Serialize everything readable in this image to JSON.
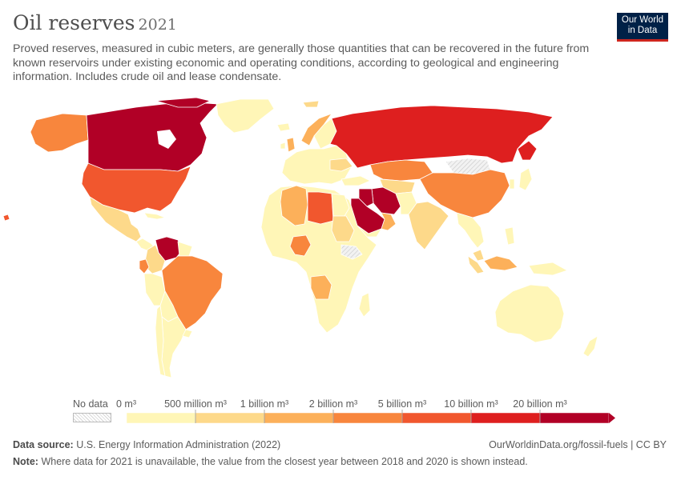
{
  "header": {
    "title": "Oil reserves",
    "year": "2021",
    "subtitle": "Proved reserves, measured in cubic meters, are generally those quantities that can be recovered in the future from known reservoirs under existing economic and operating conditions, according to geological and engineering information. Includes crude oil and lease condensate."
  },
  "logo": {
    "line1": "Our World",
    "line2": "in Data"
  },
  "legend": {
    "no_data": "No data",
    "bins": [
      "0 m³",
      "500 million m³",
      "1 billion m³",
      "2 billion m³",
      "5 billion m³",
      "10 billion m³",
      "20 billion m³"
    ],
    "colors": [
      "#fff6b7",
      "#fdd98a",
      "#fcb05a",
      "#f8863d",
      "#f1572e",
      "#de1f1f",
      "#b10026"
    ]
  },
  "footer": {
    "source_label": "Data source:",
    "source_text": "U.S. Energy Information Administration (2022)",
    "credit": "OurWorldinData.org/fossil-fuels | CC BY",
    "note_label": "Note:",
    "note_text": "Where data for 2021 is unavailable, the value from the closest year between 2018 and 2020 is shown instead."
  },
  "colors": {
    "nodata_fill": "#eeeeee",
    "border": "#ffffff",
    "land_default": "#fff6b7"
  }
}
